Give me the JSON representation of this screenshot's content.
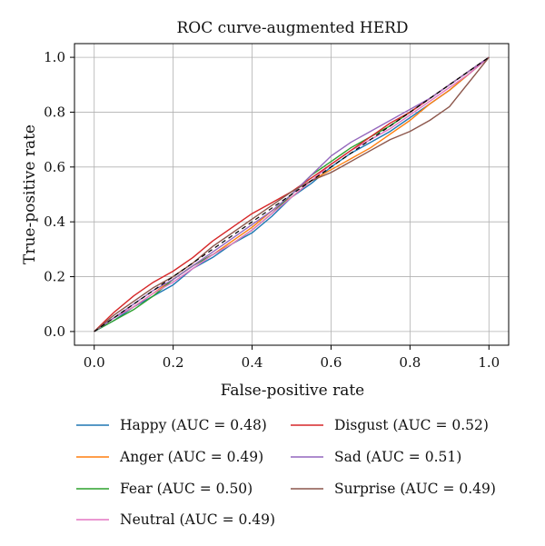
{
  "chart_data": {
    "type": "line",
    "title": "ROC curve-augmented HERD",
    "xlabel": "False-positive rate",
    "ylabel": "True-positive rate",
    "xlim": [
      -0.05,
      1.05
    ],
    "ylim": [
      -0.05,
      1.05
    ],
    "xticks": [
      "0.0",
      "0.2",
      "0.4",
      "0.6",
      "0.8",
      "1.0"
    ],
    "yticks": [
      "0.0",
      "0.2",
      "0.4",
      "0.6",
      "0.8",
      "1.0"
    ],
    "grid": true,
    "legend_position": "below",
    "diagonal_reference": {
      "x": [
        0,
        1
      ],
      "y": [
        0,
        1
      ],
      "style": "dashed",
      "color": "#000000"
    },
    "series": [
      {
        "name": "Happy (AUC = 0.48)",
        "color": "#1f77b4",
        "x": [
          0,
          0.05,
          0.1,
          0.15,
          0.2,
          0.25,
          0.3,
          0.35,
          0.4,
          0.45,
          0.5,
          0.55,
          0.6,
          0.65,
          0.7,
          0.75,
          0.8,
          0.85,
          0.9,
          0.95,
          1.0
        ],
        "y": [
          0,
          0.04,
          0.09,
          0.13,
          0.17,
          0.23,
          0.27,
          0.32,
          0.36,
          0.42,
          0.49,
          0.54,
          0.6,
          0.65,
          0.69,
          0.73,
          0.78,
          0.83,
          0.88,
          0.94,
          1.0
        ]
      },
      {
        "name": "Anger (AUC = 0.49)",
        "color": "#ff7f0e",
        "x": [
          0,
          0.05,
          0.1,
          0.15,
          0.2,
          0.25,
          0.3,
          0.35,
          0.4,
          0.45,
          0.5,
          0.55,
          0.6,
          0.65,
          0.7,
          0.75,
          0.8,
          0.85,
          0.9,
          0.95,
          1.0
        ],
        "y": [
          0,
          0.05,
          0.09,
          0.14,
          0.19,
          0.24,
          0.28,
          0.33,
          0.38,
          0.44,
          0.49,
          0.55,
          0.59,
          0.63,
          0.67,
          0.72,
          0.77,
          0.83,
          0.88,
          0.94,
          1.0
        ]
      },
      {
        "name": "Fear (AUC = 0.50)",
        "color": "#2ca02c",
        "x": [
          0,
          0.05,
          0.1,
          0.15,
          0.2,
          0.25,
          0.3,
          0.35,
          0.4,
          0.45,
          0.5,
          0.55,
          0.6,
          0.65,
          0.7,
          0.75,
          0.8,
          0.85,
          0.9,
          0.95,
          1.0
        ],
        "y": [
          0,
          0.04,
          0.08,
          0.13,
          0.19,
          0.24,
          0.28,
          0.32,
          0.37,
          0.43,
          0.5,
          0.57,
          0.62,
          0.67,
          0.71,
          0.75,
          0.8,
          0.85,
          0.9,
          0.95,
          1.0
        ]
      },
      {
        "name": "Neutral (AUC = 0.49)",
        "color": "#e377c2",
        "x": [
          0,
          0.05,
          0.1,
          0.15,
          0.2,
          0.25,
          0.3,
          0.35,
          0.4,
          0.45,
          0.5,
          0.55,
          0.6,
          0.65,
          0.7,
          0.75,
          0.8,
          0.85,
          0.9,
          0.95,
          1.0
        ],
        "y": [
          0,
          0.05,
          0.09,
          0.14,
          0.18,
          0.23,
          0.28,
          0.32,
          0.37,
          0.43,
          0.49,
          0.55,
          0.61,
          0.66,
          0.7,
          0.74,
          0.79,
          0.84,
          0.89,
          0.94,
          1.0
        ]
      },
      {
        "name": "Disgust (AUC = 0.52)",
        "color": "#d62728",
        "x": [
          0,
          0.05,
          0.1,
          0.15,
          0.2,
          0.25,
          0.3,
          0.35,
          0.4,
          0.45,
          0.5,
          0.55,
          0.6,
          0.65,
          0.7,
          0.75,
          0.8,
          0.85,
          0.9,
          0.95,
          1.0
        ],
        "y": [
          0,
          0.07,
          0.13,
          0.18,
          0.22,
          0.27,
          0.33,
          0.38,
          0.43,
          0.47,
          0.51,
          0.56,
          0.61,
          0.66,
          0.71,
          0.76,
          0.8,
          0.85,
          0.9,
          0.95,
          1.0
        ]
      },
      {
        "name": "Sad (AUC = 0.51)",
        "color": "#9467bd",
        "x": [
          0,
          0.05,
          0.1,
          0.15,
          0.2,
          0.25,
          0.3,
          0.35,
          0.4,
          0.45,
          0.5,
          0.55,
          0.6,
          0.65,
          0.7,
          0.75,
          0.8,
          0.85,
          0.9,
          0.95,
          1.0
        ],
        "y": [
          0,
          0.05,
          0.1,
          0.15,
          0.19,
          0.24,
          0.29,
          0.34,
          0.39,
          0.44,
          0.5,
          0.57,
          0.64,
          0.69,
          0.73,
          0.77,
          0.81,
          0.85,
          0.9,
          0.95,
          1.0
        ]
      },
      {
        "name": "Surprise (AUC = 0.49)",
        "color": "#8c564b",
        "x": [
          0,
          0.05,
          0.1,
          0.15,
          0.2,
          0.25,
          0.3,
          0.35,
          0.4,
          0.45,
          0.5,
          0.55,
          0.6,
          0.65,
          0.7,
          0.75,
          0.8,
          0.85,
          0.9,
          0.95,
          1.0
        ],
        "y": [
          0,
          0.06,
          0.11,
          0.16,
          0.2,
          0.25,
          0.31,
          0.36,
          0.41,
          0.46,
          0.51,
          0.55,
          0.58,
          0.62,
          0.66,
          0.7,
          0.73,
          0.77,
          0.82,
          0.91,
          1.0
        ]
      }
    ]
  }
}
